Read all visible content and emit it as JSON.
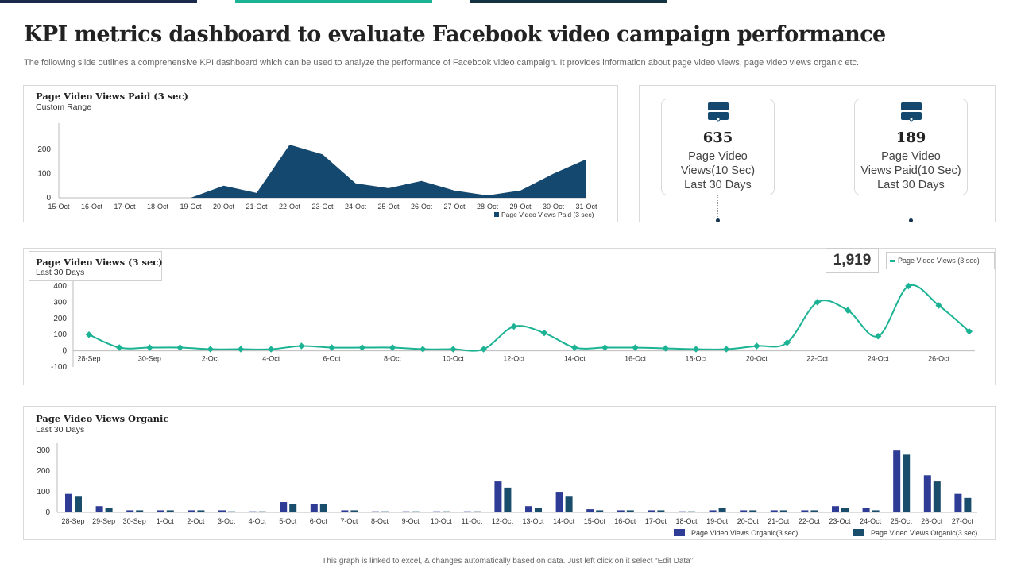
{
  "header": {
    "title": "KPI metrics dashboard to evaluate Facebook video campaign performance",
    "subtitle": "The following slide outlines a comprehensive KPI dashboard which can be used to analyze the performance of Facebook video campaign. It provides information about page video views, page video views organic etc."
  },
  "paid_panel": {
    "title": "Page Video Views Paid (3 sec)",
    "subtitle": "Custom Range"
  },
  "kpi_cards": [
    {
      "icon": "server-icon",
      "value": "635",
      "label_lines": [
        "Page Video",
        "Views(10 Sec)",
        "Last 30 Days"
      ]
    },
    {
      "icon": "server-icon",
      "value": "189",
      "label_lines": [
        "Page Video",
        "Views Paid(10 Sec)",
        "Last 30 Days"
      ]
    }
  ],
  "views_panel": {
    "title": "Page Video Views (3 sec)",
    "subtitle": "Last 30 Days",
    "highlight_value": "1,919",
    "legend": "Page Video Views (3 sec)"
  },
  "organic_panel": {
    "title": "Page Video Views Organic",
    "subtitle": "Last 30 Days"
  },
  "footer": "This graph is linked to excel, & changes automatically based on data. Just left click on it select “Edit Data”.",
  "colors": {
    "navy": "#14486e",
    "teal": "#1bb394",
    "blue": "#2e3c96",
    "dark_teal": "#1a4d6b"
  },
  "chart_data": [
    {
      "type": "area",
      "categories": [
        "15-Oct",
        "16-Oct",
        "17-Oct",
        "18-Oct",
        "19-Oct",
        "20-Oct",
        "21-Oct",
        "22-Oct",
        "23-Oct",
        "24-Oct",
        "25-Oct",
        "26-Oct",
        "27-Oct",
        "28-Oct",
        "29-Oct",
        "30-Oct",
        "31-Oct"
      ],
      "series": [
        {
          "name": "Page Video Views Paid (3 sec)",
          "values": [
            0,
            0,
            0,
            0,
            0,
            50,
            20,
            220,
            180,
            60,
            40,
            70,
            30,
            10,
            30,
            100,
            160
          ]
        }
      ],
      "yticks": [
        0,
        100,
        200
      ],
      "ylim": [
        0,
        250
      ],
      "legend": "bottom-right",
      "grid": false
    },
    {
      "type": "line",
      "x": [
        "28-Sep",
        "29-Sep",
        "30-Sep",
        "1-Oct",
        "2-Oct",
        "3-Oct",
        "4-Oct",
        "5-Oct",
        "6-Oct",
        "7-Oct",
        "8-Oct",
        "9-Oct",
        "10-Oct",
        "11-Oct",
        "12-Oct",
        "13-Oct",
        "14-Oct",
        "15-Oct",
        "16-Oct",
        "17-Oct",
        "18-Oct",
        "19-Oct",
        "20-Oct",
        "21-Oct",
        "22-Oct",
        "23-Oct",
        "24-Oct",
        "25-Oct",
        "26-Oct",
        "27-Oct"
      ],
      "xtick_labels": [
        "28-Sep",
        "30-Sep",
        "2-Oct",
        "4-Oct",
        "6-Oct",
        "8-Oct",
        "10-Oct",
        "12-Oct",
        "14-Oct",
        "16-Oct",
        "18-Oct",
        "20-Oct",
        "22-Oct",
        "24-Oct",
        "26-Oct"
      ],
      "series": [
        {
          "name": "Page Video Views (3 sec)",
          "values": [
            100,
            20,
            20,
            20,
            10,
            10,
            10,
            30,
            20,
            20,
            20,
            10,
            10,
            10,
            150,
            110,
            20,
            20,
            20,
            15,
            10,
            10,
            30,
            50,
            300,
            250,
            90,
            400,
            280,
            120
          ]
        }
      ],
      "yticks": [
        -100,
        0,
        100,
        200,
        300,
        400
      ],
      "ylim": [
        -100,
        400
      ],
      "legend": "top-right",
      "grid": false
    },
    {
      "type": "bar",
      "categories": [
        "28-Sep",
        "29-Sep",
        "30-Sep",
        "1-Oct",
        "2-Oct",
        "3-Oct",
        "4-Oct",
        "5-Oct",
        "6-Oct",
        "7-Oct",
        "8-Oct",
        "9-Oct",
        "10-Oct",
        "11-Oct",
        "12-Oct",
        "13-Oct",
        "14-Oct",
        "15-Oct",
        "16-Oct",
        "17-Oct",
        "18-Oct",
        "19-Oct",
        "20-Oct",
        "21-Oct",
        "22-Oct",
        "23-Oct",
        "24-Oct",
        "25-Oct",
        "26-Oct",
        "27-Oct"
      ],
      "series": [
        {
          "name": "Page Video Views Organic(3 sec)",
          "values": [
            90,
            30,
            10,
            10,
            10,
            10,
            5,
            50,
            40,
            10,
            5,
            5,
            5,
            5,
            150,
            30,
            100,
            15,
            10,
            10,
            5,
            10,
            10,
            10,
            10,
            30,
            20,
            300,
            180,
            90
          ]
        },
        {
          "name": "Page Video Views Organic(3 sec)",
          "values": [
            80,
            20,
            10,
            10,
            10,
            5,
            5,
            40,
            40,
            10,
            5,
            5,
            5,
            5,
            120,
            20,
            80,
            10,
            10,
            10,
            5,
            20,
            10,
            10,
            10,
            20,
            10,
            280,
            150,
            70
          ]
        }
      ],
      "yticks": [
        0,
        100,
        200,
        300
      ],
      "ylim": [
        0,
        320
      ],
      "legend": "bottom-right",
      "grid": false
    }
  ]
}
